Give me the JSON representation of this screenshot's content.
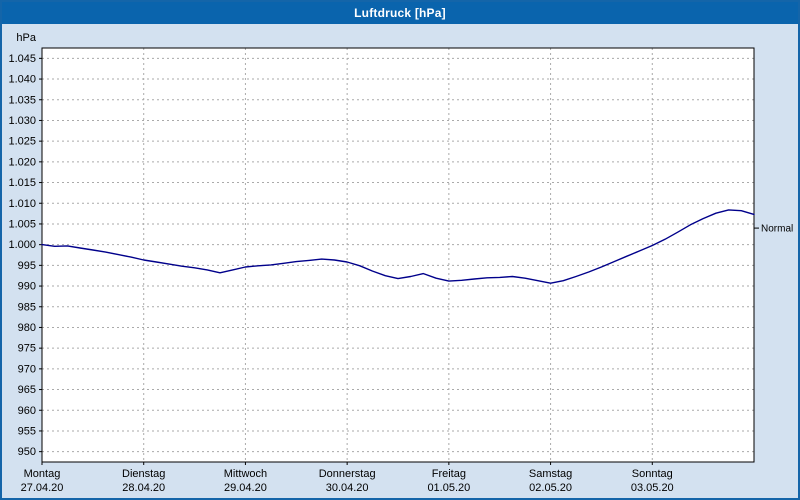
{
  "window": {
    "title": "Luftdruck [hPa]"
  },
  "colors": {
    "titlebar": "#0a64ad",
    "window_border": "#1465a9",
    "background": "#d3e1f0",
    "plot_background": "#ffffff",
    "plot_border": "#000000",
    "grid": "#aaaaaa",
    "line": "#00008b",
    "text": "#000000"
  },
  "chart_data": {
    "type": "line",
    "title": "Luftdruck [hPa]",
    "ylabel": "hPa",
    "ylim": [
      947.5,
      1047.5
    ],
    "xlim": [
      0,
      7
    ],
    "grid": "dashed",
    "legend_position": "none",
    "y_ticks": [
      {
        "value": 1045,
        "label": "1.045"
      },
      {
        "value": 1040,
        "label": "1.040"
      },
      {
        "value": 1035,
        "label": "1.035"
      },
      {
        "value": 1030,
        "label": "1.030"
      },
      {
        "value": 1025,
        "label": "1.025"
      },
      {
        "value": 1020,
        "label": "1.020"
      },
      {
        "value": 1015,
        "label": "1.015"
      },
      {
        "value": 1010,
        "label": "1.010"
      },
      {
        "value": 1005,
        "label": "1.005"
      },
      {
        "value": 1000,
        "label": "1.000"
      },
      {
        "value": 995,
        "label": "995"
      },
      {
        "value": 990,
        "label": "990"
      },
      {
        "value": 985,
        "label": "985"
      },
      {
        "value": 980,
        "label": "980"
      },
      {
        "value": 975,
        "label": "975"
      },
      {
        "value": 970,
        "label": "970"
      },
      {
        "value": 965,
        "label": "965"
      },
      {
        "value": 960,
        "label": "960"
      },
      {
        "value": 955,
        "label": "955"
      },
      {
        "value": 950,
        "label": "950"
      }
    ],
    "x_categories": [
      {
        "day": "Montag",
        "date": "27.04.20"
      },
      {
        "day": "Dienstag",
        "date": "28.04.20"
      },
      {
        "day": "Mittwoch",
        "date": "29.04.20"
      },
      {
        "day": "Donnerstag",
        "date": "30.04.20"
      },
      {
        "day": "Freitag",
        "date": "01.05.20"
      },
      {
        "day": "Samstag",
        "date": "02.05.20"
      },
      {
        "day": "Sonntag",
        "date": "03.05.20"
      }
    ],
    "annotation": {
      "label": "Normal",
      "value": 1004
    },
    "series": [
      {
        "name": "Luftdruck",
        "x": [
          0,
          0.125,
          0.25,
          0.375,
          0.5,
          0.625,
          0.75,
          0.875,
          1,
          1.125,
          1.25,
          1.375,
          1.5,
          1.625,
          1.75,
          1.875,
          2,
          2.125,
          2.25,
          2.375,
          2.5,
          2.625,
          2.75,
          2.875,
          3,
          3.125,
          3.25,
          3.375,
          3.5,
          3.625,
          3.75,
          3.875,
          4,
          4.125,
          4.25,
          4.375,
          4.5,
          4.625,
          4.75,
          4.875,
          5,
          5.125,
          5.25,
          5.375,
          5.5,
          5.625,
          5.75,
          5.875,
          6,
          6.125,
          6.25,
          6.375,
          6.5,
          6.625,
          6.75,
          6.875,
          7
        ],
        "y": [
          1000.0,
          999.6,
          999.7,
          999.2,
          998.7,
          998.2,
          997.6,
          997.0,
          996.3,
          995.8,
          995.3,
          994.8,
          994.4,
          993.9,
          993.2,
          993.9,
          994.6,
          994.9,
          995.1,
          995.5,
          995.9,
          996.2,
          996.5,
          996.3,
          995.8,
          994.9,
          993.6,
          992.5,
          991.8,
          992.3,
          993.0,
          991.9,
          991.2,
          991.4,
          991.7,
          992.0,
          992.1,
          992.3,
          991.9,
          991.3,
          990.7,
          991.3,
          992.3,
          993.4,
          994.6,
          995.9,
          997.2,
          998.5,
          999.8,
          1001.3,
          1003.0,
          1004.8,
          1006.3,
          1007.6,
          1008.4,
          1008.2,
          1007.3
        ]
      }
    ]
  }
}
